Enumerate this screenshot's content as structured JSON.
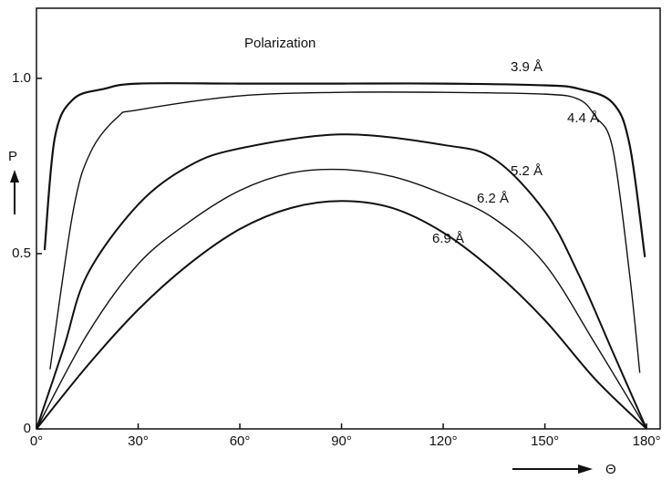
{
  "chart_data": {
    "type": "line",
    "title": "Polarization",
    "y_label": "P",
    "x_label": "Θ",
    "xlim": [
      0,
      184
    ],
    "ylim": [
      0,
      1.2
    ],
    "xticks": [
      {
        "value": 0,
        "label": "0°"
      },
      {
        "value": 30,
        "label": "30°"
      },
      {
        "value": 60,
        "label": "60°"
      },
      {
        "value": 90,
        "label": "90°"
      },
      {
        "value": 120,
        "label": "120°"
      },
      {
        "value": 150,
        "label": "150°"
      },
      {
        "value": 180,
        "label": "180°"
      }
    ],
    "yticks": [
      0,
      0.5,
      {
        "value": 1.0,
        "label": "1.0"
      }
    ],
    "series": [
      {
        "name": "3.9 Å",
        "color": "#111111",
        "x": [
          2.4,
          5.4,
          10.8,
          20,
          30,
          60,
          90,
          120,
          150,
          160,
          170,
          175,
          179.5
        ],
        "values": [
          0.51,
          0.83,
          0.94,
          0.97,
          0.985,
          0.985,
          0.985,
          0.985,
          0.98,
          0.97,
          0.93,
          0.81,
          0.49
        ]
      },
      {
        "name": "4.4 Å",
        "color": "#111111",
        "x": [
          4,
          10.8,
          16,
          24,
          30,
          60,
          90,
          120,
          150,
          160,
          165,
          170,
          175,
          178
        ],
        "values": [
          0.17,
          0.62,
          0.79,
          0.89,
          0.91,
          0.95,
          0.96,
          0.96,
          0.955,
          0.94,
          0.89,
          0.8,
          0.44,
          0.16
        ]
      },
      {
        "name": "5.2 Å",
        "color": "#111111",
        "x": [
          0,
          8,
          15,
          30,
          45,
          60,
          90,
          120,
          135,
          150,
          160,
          170,
          180
        ],
        "values": [
          0,
          0.23,
          0.44,
          0.64,
          0.75,
          0.8,
          0.84,
          0.81,
          0.77,
          0.62,
          0.44,
          0.22,
          0
        ]
      },
      {
        "name": "6.2 Å",
        "color": "#111111",
        "x": [
          0,
          15,
          30,
          45,
          60,
          75,
          90,
          105,
          120,
          135,
          150,
          165,
          180
        ],
        "values": [
          0,
          0.27,
          0.47,
          0.59,
          0.68,
          0.73,
          0.74,
          0.72,
          0.67,
          0.6,
          0.47,
          0.24,
          0
        ]
      },
      {
        "name": "6.9 Å",
        "color": "#111111",
        "x": [
          0,
          15,
          30,
          45,
          60,
          75,
          90,
          105,
          120,
          135,
          150,
          165,
          180
        ],
        "values": [
          0,
          0.18,
          0.34,
          0.47,
          0.57,
          0.63,
          0.65,
          0.63,
          0.56,
          0.45,
          0.31,
          0.14,
          0
        ]
      }
    ]
  }
}
